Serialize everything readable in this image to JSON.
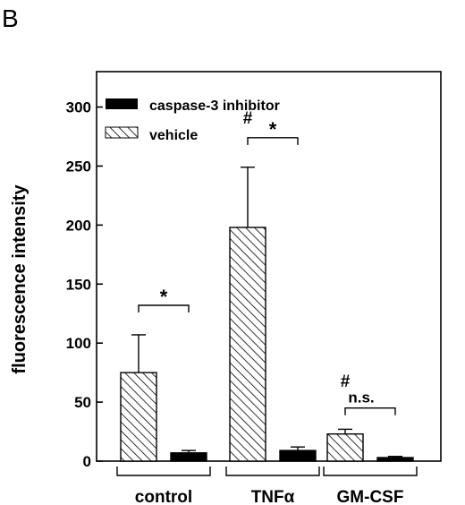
{
  "panel_label": "B",
  "chart_data": {
    "type": "bar",
    "categories": [
      "control",
      "TNFα",
      "GM-CSF"
    ],
    "series": [
      {
        "name": "vehicle",
        "pattern": "hatched",
        "values": [
          75,
          198,
          23
        ],
        "errors": [
          32,
          51,
          4
        ]
      },
      {
        "name": "caspase-3 inhibitor",
        "pattern": "solid",
        "values": [
          7,
          9,
          3
        ],
        "errors": [
          2,
          3,
          1
        ]
      }
    ],
    "ylabel": "fluorescence intensity",
    "xlabel": "",
    "ylim": [
      0,
      330
    ],
    "yticks": [
      0,
      50,
      100,
      150,
      200,
      250,
      300
    ],
    "legend_position": "top-left",
    "comparison_annotations": [
      {
        "category": "control",
        "label": "*"
      },
      {
        "category": "TNFα",
        "label": "*"
      },
      {
        "category": "GM-CSF",
        "label": "n.s."
      }
    ],
    "hash_annotations": [
      {
        "category": "TNFα",
        "label": "#"
      },
      {
        "category": "GM-CSF",
        "label": "#"
      }
    ],
    "colors": {
      "ink": "#000000",
      "background": "#ffffff"
    }
  }
}
